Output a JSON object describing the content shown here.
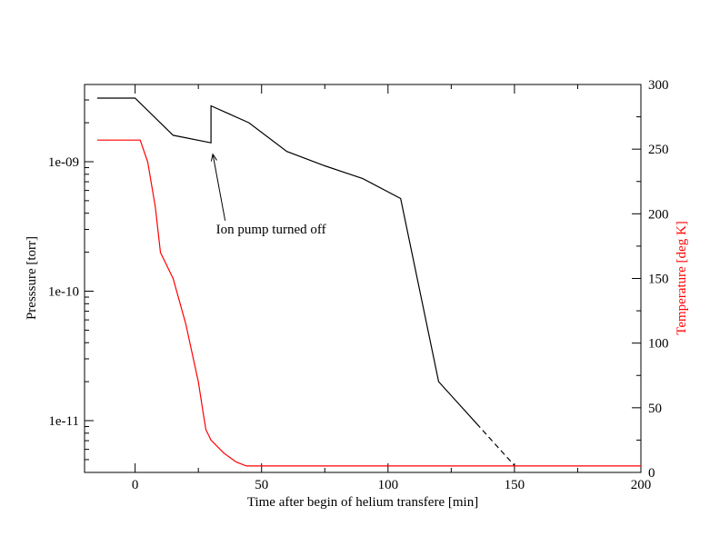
{
  "chart_data": {
    "type": "line",
    "xlabel": "Time after begin of helium transfere [min]",
    "ylabel_left": "Presssure [torr]",
    "ylabel_right": "Temperature [deg K]",
    "xlim": [
      -20,
      200
    ],
    "xticks": [
      0,
      50,
      100,
      150,
      200
    ],
    "y_left_scale": "log",
    "y_left_ticks": [
      {
        "value": 1e-09,
        "label": "1e-09"
      },
      {
        "value": 1e-10,
        "label": "1e-10"
      },
      {
        "value": 1e-11,
        "label": "1e-11"
      }
    ],
    "y_right_lim": [
      0,
      300
    ],
    "y_right_ticks": [
      0,
      50,
      100,
      150,
      200,
      250,
      300
    ],
    "grid": false,
    "colors": {
      "pressure": "#000000",
      "temperature": "#ff0000",
      "frame": "#000000"
    },
    "series": [
      {
        "axis": "left",
        "color": "#000000",
        "points": [
          [
            -15,
            3.1e-09
          ],
          [
            0,
            3.1e-09
          ],
          [
            15,
            1.6e-09
          ],
          [
            30,
            1.4e-09
          ],
          [
            30,
            2.7e-09
          ],
          [
            45,
            2e-09
          ],
          [
            60,
            1.2e-09
          ],
          [
            75,
            9.3e-10
          ],
          [
            90,
            7.4e-10
          ],
          [
            105,
            5.2e-10
          ],
          [
            120,
            2e-11
          ],
          [
            135,
            9.5e-12
          ]
        ],
        "dashed_continuation": [
          [
            135,
            9.5e-12
          ],
          [
            150,
            4.5e-12
          ]
        ]
      },
      {
        "axis": "right",
        "color": "#ff0000",
        "points": [
          [
            -15,
            257
          ],
          [
            2,
            257
          ],
          [
            5,
            240
          ],
          [
            8,
            205
          ],
          [
            10,
            170
          ],
          [
            15,
            150
          ],
          [
            20,
            115
          ],
          [
            25,
            70
          ],
          [
            27,
            45
          ],
          [
            28,
            33
          ],
          [
            30,
            25
          ],
          [
            35,
            15
          ],
          [
            40,
            8
          ],
          [
            44,
            5
          ],
          [
            200,
            5
          ]
        ]
      }
    ],
    "annotations": [
      {
        "text": "Ion pump turned off",
        "x": 32,
        "y": 2.8e-10,
        "arrow_to": [
          30,
          1.3e-09
        ]
      }
    ]
  }
}
